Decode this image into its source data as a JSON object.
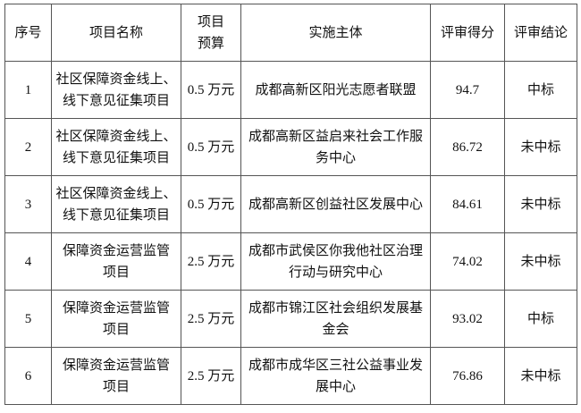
{
  "headers": {
    "index": "序号",
    "name_l1": "项目名称",
    "budget_l1": "项目",
    "budget_l2": "预算",
    "org": "实施主体",
    "score": "评审得分",
    "result": "评审结论"
  },
  "rows": [
    {
      "index": "1",
      "name": [
        "社区保障资金线上、",
        "线下意见征集项目"
      ],
      "budget": "0.5 万元",
      "org": [
        "成都高新区阳光志愿者联盟"
      ],
      "score": "94.7",
      "result": "中标"
    },
    {
      "index": "2",
      "name": [
        "社区保障资金线上、",
        "线下意见征集项目"
      ],
      "budget": "0.5 万元",
      "org": [
        "成都高新区益启来社会工作服",
        "务中心"
      ],
      "score": "86.72",
      "result": "未中标"
    },
    {
      "index": "3",
      "name": [
        "社区保障资金线上、",
        "线下意见征集项目"
      ],
      "budget": "0.5 万元",
      "org": [
        "成都高新区创益社区发展中心"
      ],
      "score": "84.61",
      "result": "未中标"
    },
    {
      "index": "4",
      "name": [
        "保障资金运营监管",
        "项目"
      ],
      "budget": "2.5 万元",
      "org": [
        "成都市武侯区你我他社区治理",
        "行动与研究中心"
      ],
      "score": "74.02",
      "result": "未中标"
    },
    {
      "index": "5",
      "name": [
        "保障资金运营监管",
        "项目"
      ],
      "budget": "2.5 万元",
      "org": [
        "成都市锦江区社会组织发展基",
        "金会"
      ],
      "score": "93.02",
      "result": "中标"
    },
    {
      "index": "6",
      "name": [
        "保障资金运营监管",
        "项目"
      ],
      "budget": "2.5 万元",
      "org": [
        "成都市成华区三社公益事业发",
        "展中心"
      ],
      "score": "76.86",
      "result": "未中标"
    }
  ]
}
